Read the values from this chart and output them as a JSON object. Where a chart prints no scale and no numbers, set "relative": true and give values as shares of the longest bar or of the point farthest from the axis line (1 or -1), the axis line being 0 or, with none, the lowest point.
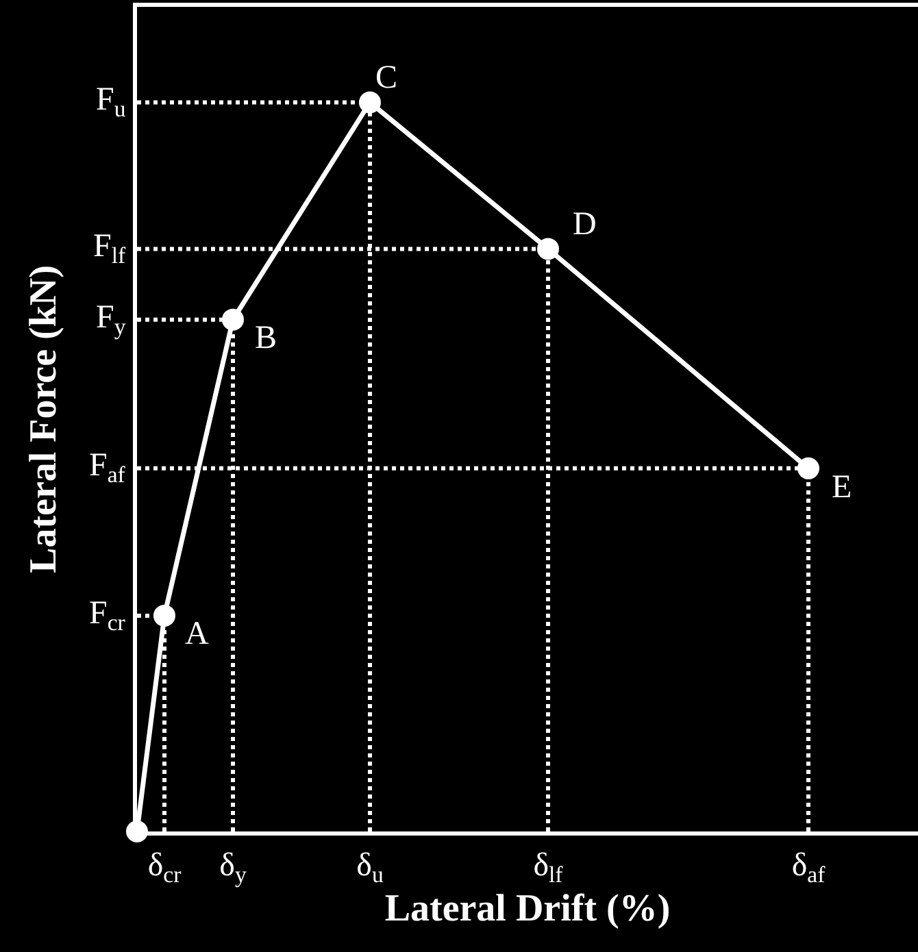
{
  "chart_data": {
    "type": "line",
    "relative": true,
    "xlabel": "Lateral Drift (%)",
    "ylabel": "Lateral Force (kN)",
    "categories": [
      null,
      null,
      "δ$_{cr}$",
      null,
      null,
      null,
      null,
      "δ$_{y}$",
      null,
      null,
      null,
      null,
      null,
      null,
      null,
      null,
      null,
      "δ$_{u}$",
      null,
      null,
      null,
      null,
      null,
      null,
      null,
      null,
      null,
      null,
      null,
      null,
      "δ$_{lf}$",
      null,
      null,
      null,
      null,
      null,
      null,
      null,
      null,
      null,
      null,
      null,
      null,
      null,
      null,
      null,
      null,
      null,
      null,
      "δ$_{af}$",
      null,
      null,
      null,
      null,
      null,
      null,
      null
    ],
    "series": [
      {
        "color": "#ffffff",
        "values": [
          0,
          null,
          0.296,
          null,
          null,
          null,
          null,
          0.702,
          null,
          null,
          null,
          null,
          null,
          null,
          null,
          null,
          null,
          1,
          null,
          null,
          null,
          null,
          null,
          null,
          null,
          null,
          null,
          null,
          null,
          null,
          0.799,
          null,
          null,
          null,
          null,
          null,
          null,
          null,
          null,
          null,
          null,
          null,
          null,
          null,
          null,
          null,
          null,
          null,
          null,
          0.498,
          null,
          null,
          null,
          null,
          null,
          null,
          null
        ]
      }
    ],
    "marker": "circle",
    "line_style": "solid",
    "grid": true,
    "annotations": [
      "F$_{cr}$",
      "F$_{y}$",
      "F$_{u}$",
      "F$_{lf}$",
      "F$_{af}$",
      {
        "text": "A",
        "x": "δ$_{cr}$",
        "y": 0.296
      },
      {
        "text": "B",
        "x": "δ$_{y}$",
        "y": 0.702
      },
      {
        "text": "C",
        "x": "δ$_{u}$",
        "y": 1
      },
      {
        "text": "D",
        "x": "δ$_{lf}$",
        "y": 0.799
      },
      {
        "text": "E",
        "x": "δ$_{af}$",
        "y": 0.498
      }
    ]
  }
}
